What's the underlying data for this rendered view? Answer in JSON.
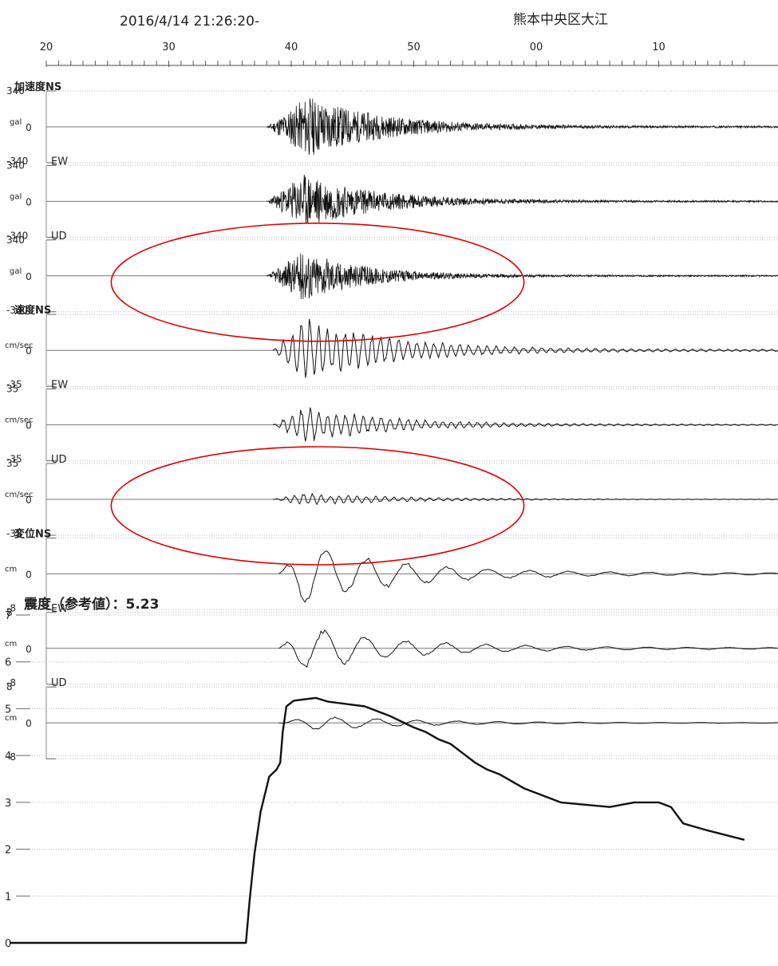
{
  "header": {
    "datetime": "2016/4/14 21:26:20-",
    "station": "熊本中央区大江"
  },
  "chart_data": [
    {
      "type": "line",
      "description_axis": "time seconds, labels show seconds of the minute",
      "x_tick_labels": [
        "20",
        "30",
        "40",
        "50",
        "00",
        "10"
      ],
      "x_tick_values_sec": [
        20,
        30,
        40,
        50,
        60,
        70
      ],
      "xlim_sec": [
        17,
        77
      ],
      "waveform_start_sec": 38,
      "panels": [
        {
          "group": "加速度",
          "channel": "NS",
          "unit": "gal",
          "ymax": "340",
          "yzero": "0",
          "ymin": "-340",
          "ylim": [
            -340,
            340
          ],
          "style": "acc",
          "amp": 0.85,
          "onset": 38.0,
          "peak_sec": 41.3,
          "decay": 6.0,
          "seed": 11
        },
        {
          "group": "",
          "channel": "EW",
          "unit": "gal",
          "ymax": "340",
          "yzero": "0",
          "ymin": "-340",
          "ylim": [
            -340,
            340
          ],
          "style": "acc",
          "amp": 0.75,
          "onset": 38.0,
          "peak_sec": 41.0,
          "decay": 6.0,
          "seed": 23
        },
        {
          "group": "",
          "channel": "UD",
          "unit": "gal",
          "ymax": "340",
          "yzero": "0",
          "ymin": "-340",
          "ylim": [
            -340,
            340
          ],
          "style": "acc",
          "amp": 0.7,
          "onset": 38.0,
          "peak_sec": 41.0,
          "decay": 5.0,
          "seed": 37
        },
        {
          "group": "速度",
          "channel": "NS",
          "unit": "cm/sec",
          "ymax": "",
          "yzero": "0",
          "ymin": "-35",
          "ylim": [
            -35,
            35
          ],
          "style": "vel",
          "amp": 0.8,
          "onset": 38.5,
          "peak_sec": 41.0,
          "decay": 7.0,
          "seed": 41
        },
        {
          "group": "",
          "channel": "EW",
          "unit": "cm/sec",
          "ymax": "35",
          "yzero": "0",
          "ymin": "-35",
          "ylim": [
            -35,
            35
          ],
          "style": "vel",
          "amp": 0.45,
          "onset": 38.5,
          "peak_sec": 41.0,
          "decay": 7.0,
          "seed": 53
        },
        {
          "group": "",
          "channel": "UD",
          "unit": "cm/sec",
          "ymax": "35",
          "yzero": "0",
          "ymin": "-35",
          "ylim": [
            -35,
            35
          ],
          "style": "vel",
          "amp": 0.15,
          "onset": 38.5,
          "peak_sec": 41.0,
          "decay": 8.0,
          "seed": 67
        },
        {
          "group": "変位",
          "channel": "NS",
          "unit": "cm",
          "ymax": "",
          "yzero": "0",
          "ymin": "-8",
          "ylim": [
            -8,
            8
          ],
          "style": "disp",
          "amp": 0.8,
          "onset": 39.0,
          "peak_sec": 41.0,
          "decay": 8.0,
          "seed": 71
        },
        {
          "group": "",
          "channel": "EW",
          "unit": "cm",
          "ymax": "8",
          "yzero": "0",
          "ymin": "-8",
          "ylim": [
            -8,
            8
          ],
          "style": "disp",
          "amp": 0.6,
          "onset": 39.0,
          "peak_sec": 41.0,
          "decay": 8.0,
          "seed": 83
        },
        {
          "group": "",
          "channel": "UD",
          "unit": "cm",
          "ymax": "8",
          "yzero": "0",
          "ymin": "-8",
          "ylim": [
            -8,
            8
          ],
          "style": "disp",
          "amp": 0.2,
          "onset": 39.0,
          "peak_sec": 42.0,
          "decay": 8.0,
          "seed": 97
        }
      ],
      "annotations": [
        {
          "type": "ellipse",
          "color": "#e00000",
          "around": "加速度 UD",
          "x_range_sec": [
            25.3,
            59.0
          ]
        },
        {
          "type": "ellipse",
          "color": "#e00000",
          "around": "速度 UD",
          "x_range_sec": [
            25.3,
            59.0
          ]
        }
      ]
    },
    {
      "type": "line",
      "title": "震度（参考値）：5.23",
      "y_tick_labels": [
        "7",
        "6",
        "5",
        "4",
        "3",
        "2",
        "1",
        "0"
      ],
      "ylim": [
        0,
        7
      ],
      "x": [
        17,
        36.3,
        36.6,
        37.0,
        37.5,
        38.2,
        38.8,
        39.1,
        39.3,
        39.6,
        40.2,
        42.0,
        43.0,
        44.5,
        46.0,
        48.0,
        50.0,
        51.0,
        52.0,
        53.0,
        54.0,
        55.0,
        56.0,
        57.0,
        58.0,
        59.0,
        61.0,
        62.0,
        64.0,
        66.0,
        67.0,
        68.0,
        69.0,
        70.0,
        71.0,
        72.0,
        74.0,
        77.0
      ],
      "y": [
        0,
        0,
        0.9,
        1.9,
        2.8,
        3.55,
        3.7,
        3.85,
        4.5,
        5.05,
        5.17,
        5.23,
        5.15,
        5.1,
        5.05,
        4.85,
        4.6,
        4.5,
        4.35,
        4.25,
        4.05,
        3.85,
        3.7,
        3.6,
        3.45,
        3.3,
        3.1,
        3.0,
        2.95,
        2.9,
        2.95,
        3.0,
        3.0,
        3.0,
        2.9,
        2.55,
        2.4,
        2.2
      ]
    }
  ]
}
